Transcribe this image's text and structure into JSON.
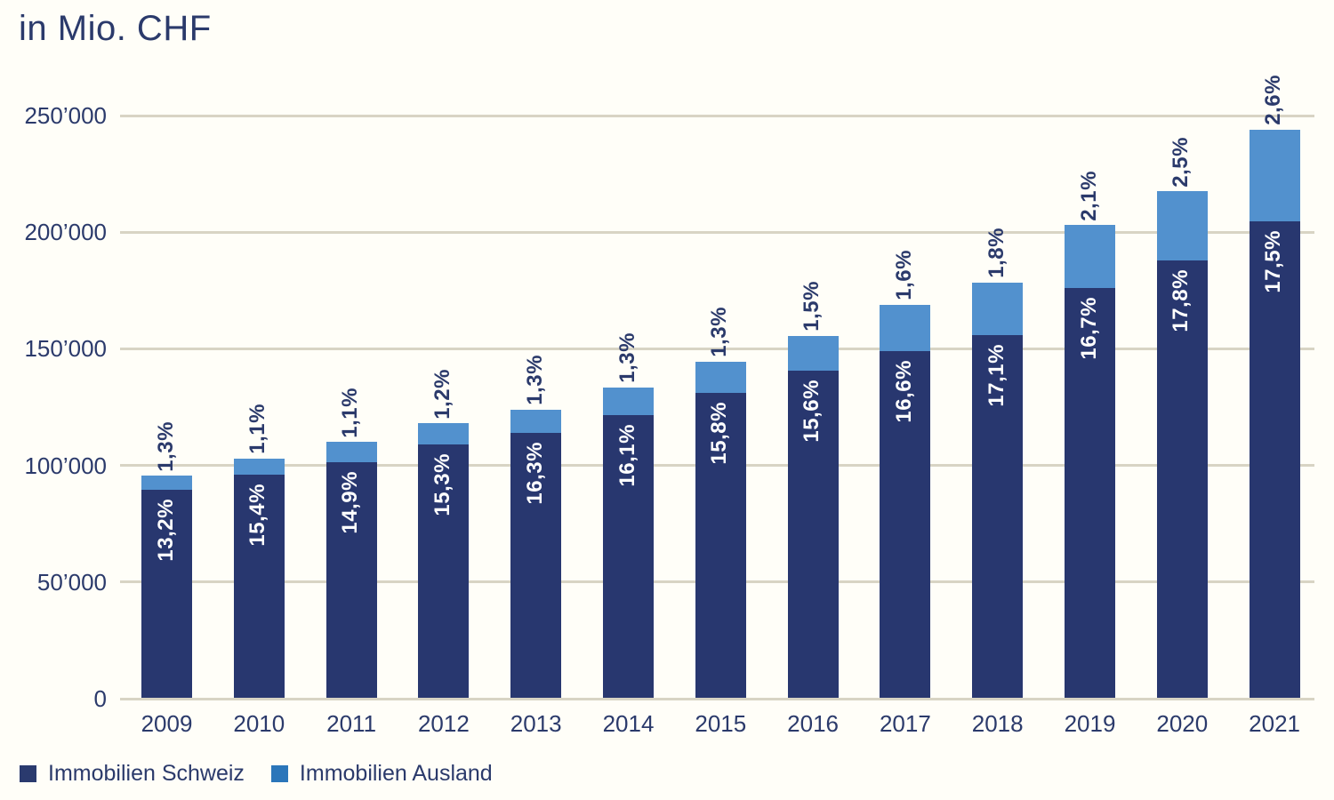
{
  "title": "in Mio. CHF",
  "chart_data": {
    "type": "bar",
    "stacked": true,
    "title": "in Mio. CHF",
    "categories": [
      "2009",
      "2010",
      "2011",
      "2012",
      "2013",
      "2014",
      "2015",
      "2016",
      "2017",
      "2018",
      "2019",
      "2020",
      "2021"
    ],
    "series": [
      {
        "name": "Immobilien Schweiz",
        "color": "#28376f",
        "values": [
          89500,
          96000,
          101500,
          109000,
          114000,
          121500,
          131000,
          140500,
          149000,
          156000,
          176000,
          188000,
          204500
        ],
        "pct_labels": [
          "13,2%",
          "15,4%",
          "14,9%",
          "15,3%",
          "16,3%",
          "16,1%",
          "15,8%",
          "15,6%",
          "16,6%",
          "17,1%",
          "16,7%",
          "17,8%",
          "17,5%"
        ],
        "pct_label_color": "#ffffff",
        "pct_label_position": "inside-top"
      },
      {
        "name": "Immobilien Ausland",
        "color": "#5291ce",
        "values": [
          6000,
          7000,
          8500,
          9000,
          10000,
          12000,
          13500,
          15000,
          20000,
          22500,
          27000,
          29500,
          39500
        ],
        "pct_labels": [
          "1,3%",
          "1,1%",
          "1,1%",
          "1,2%",
          "1,3%",
          "1,3%",
          "1,3%",
          "1,5%",
          "1,6%",
          "1,8%",
          "2,1%",
          "2,5%",
          "2,6%"
        ],
        "pct_label_color": "#2b3a6b",
        "pct_label_position": "above-bar"
      }
    ],
    "ylim": [
      0,
      250000
    ],
    "y_ticks": [
      {
        "value": 0,
        "label": "0"
      },
      {
        "value": 50000,
        "label": "50’000"
      },
      {
        "value": 100000,
        "label": "100’000"
      },
      {
        "value": 150000,
        "label": "150’000"
      },
      {
        "value": 200000,
        "label": "200’000"
      },
      {
        "value": 250000,
        "label": "250’000"
      }
    ],
    "grid": "horizontal",
    "gridline_color": "#d8d4c4",
    "axis_text_color": "#2b3a6b",
    "legend_position": "bottom-left"
  },
  "legend": {
    "items": [
      {
        "label": "Immobilien Schweiz",
        "color": "#2a3a6e"
      },
      {
        "label": "Immobilien Ausland",
        "color": "#2b76ba"
      }
    ]
  }
}
